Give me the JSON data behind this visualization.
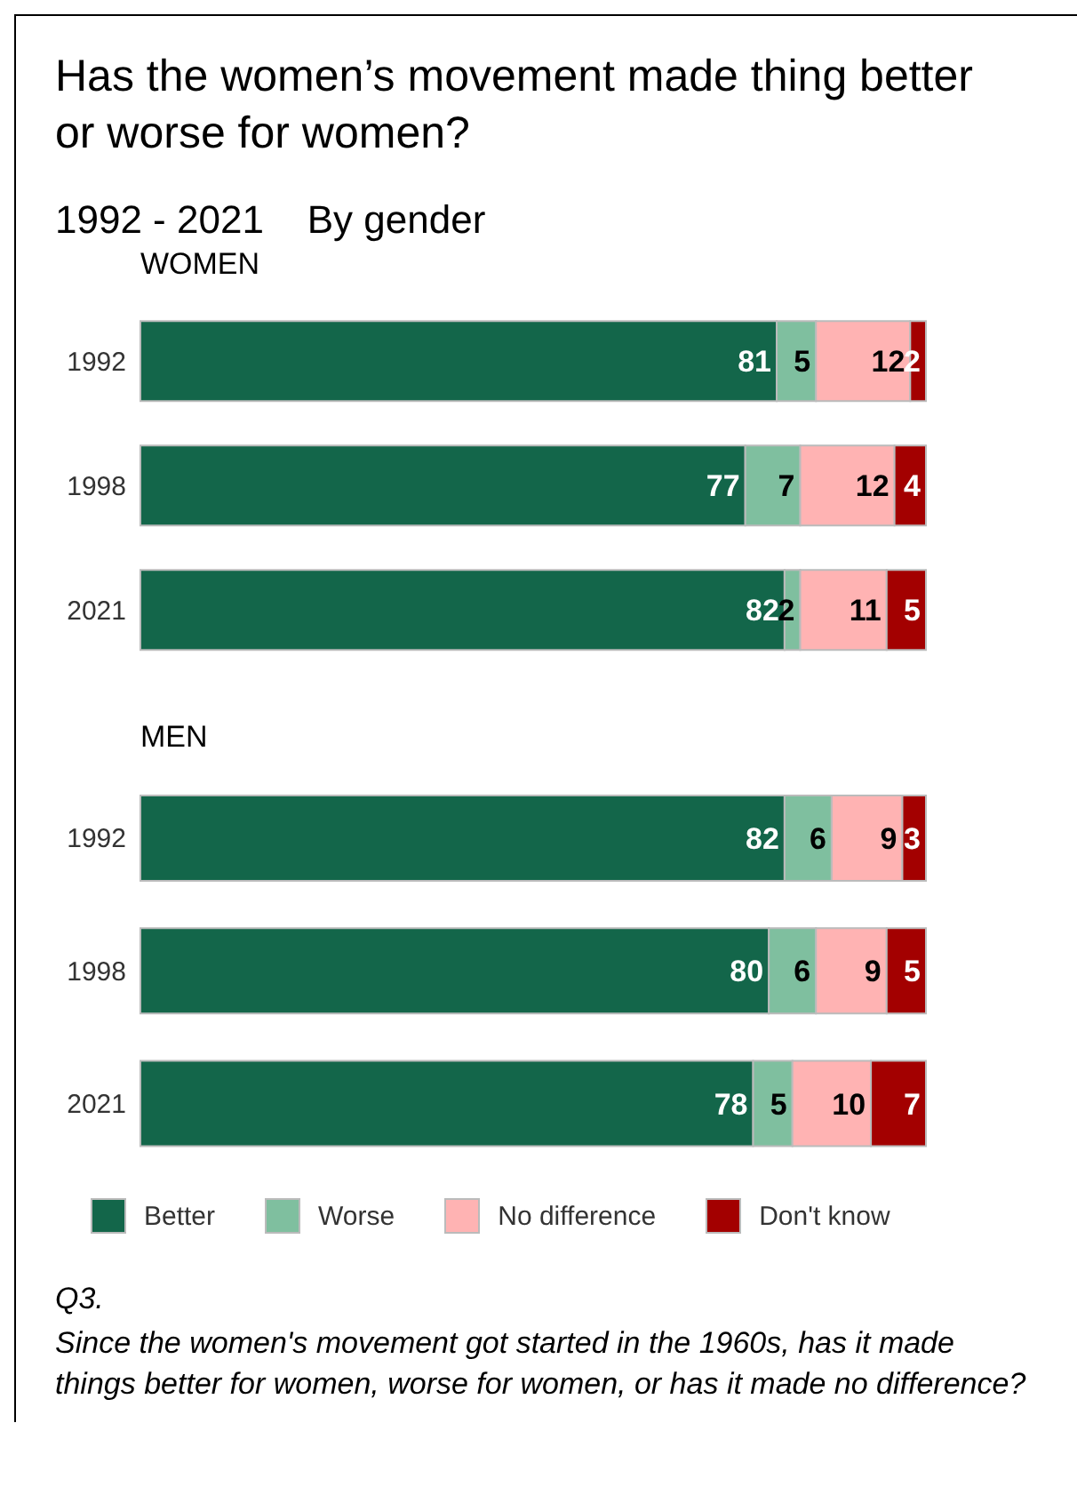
{
  "chart_data": [
    {
      "type": "bar",
      "orientation": "horizontal",
      "stacked": true,
      "title": "Has the women’s movement made thing better or worse for women?",
      "subtitle": "1992 - 2021    By gender",
      "ylabel": "WOMEN",
      "categories": [
        "1992",
        "1998",
        "2021"
      ],
      "data_labels": true,
      "legend": false,
      "series": [
        {
          "color": "#13664a",
          "values": [
            81,
            77,
            82
          ]
        },
        {
          "color": "#7fbf9f",
          "values": [
            5,
            7,
            2
          ]
        },
        {
          "color": "#ffb3b3",
          "values": [
            12,
            12,
            11
          ]
        },
        {
          "color": "#a30000",
          "values": [
            2,
            4,
            5
          ]
        }
      ]
    },
    {
      "type": "bar",
      "orientation": "horizontal",
      "stacked": true,
      "ylabel": "MEN",
      "categories": [
        "1992",
        "1998",
        "2021"
      ],
      "data_labels": true,
      "legend": "bottom",
      "annotations": [
        "Q3.",
        "Since the women's movement got started in the 1960s, has it made things better for women, worse for women, or has it made no difference?"
      ],
      "series": [
        {
          "name": "Better",
          "color": "#13664a",
          "values": [
            82,
            80,
            78
          ]
        },
        {
          "name": "Worse",
          "color": "#7fbf9f",
          "values": [
            6,
            6,
            5
          ]
        },
        {
          "name": "No difference",
          "color": "#ffb3b3",
          "values": [
            9,
            9,
            10
          ]
        },
        {
          "name": "Don't know",
          "color": "#a30000",
          "values": [
            3,
            5,
            7
          ]
        }
      ]
    }
  ]
}
